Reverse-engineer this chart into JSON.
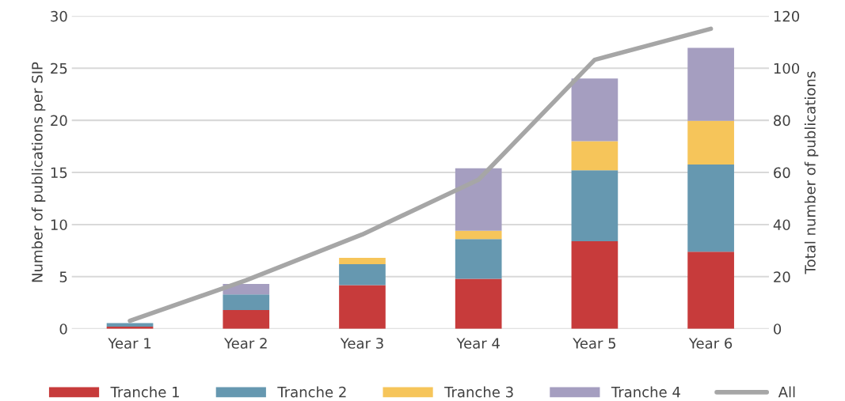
{
  "chart_data": {
    "type": "bar",
    "stacked": true,
    "categories": [
      "Year 1",
      "Year 2",
      "Year 3",
      "Year 4",
      "Year 5",
      "Year 6"
    ],
    "ylabel": "Number of publications per SIP",
    "y2label": "Total number of publications",
    "ylim": [
      0,
      30
    ],
    "yticks": [
      0,
      5,
      10,
      15,
      20,
      25,
      30
    ],
    "y2lim": [
      0,
      120
    ],
    "y2ticks": [
      0,
      20,
      40,
      60,
      80,
      100,
      120
    ],
    "grid": "y",
    "legend": "bottom",
    "series": [
      {
        "name": "Tranche 1",
        "color": "#c73b3b",
        "values": [
          0.2,
          1.8,
          4.2,
          4.8,
          8.4,
          7.4
        ]
      },
      {
        "name": "Tranche 2",
        "color": "#6698b0",
        "values": [
          0.35,
          1.5,
          2.0,
          3.8,
          6.8,
          8.35
        ]
      },
      {
        "name": "Tranche 3",
        "color": "#f6c55a",
        "values": [
          0,
          0,
          0.6,
          0.8,
          2.8,
          4.2
        ]
      },
      {
        "name": "Tranche 4",
        "color": "#a59ec0",
        "values": [
          0,
          1.0,
          0,
          6.0,
          6.0,
          7.0
        ]
      },
      {
        "name": "All",
        "type": "line",
        "axis": "y2",
        "color": "#a6a6a6",
        "values": [
          3.1,
          18.6,
          36.2,
          57.2,
          103.2,
          115.1
        ]
      }
    ]
  }
}
